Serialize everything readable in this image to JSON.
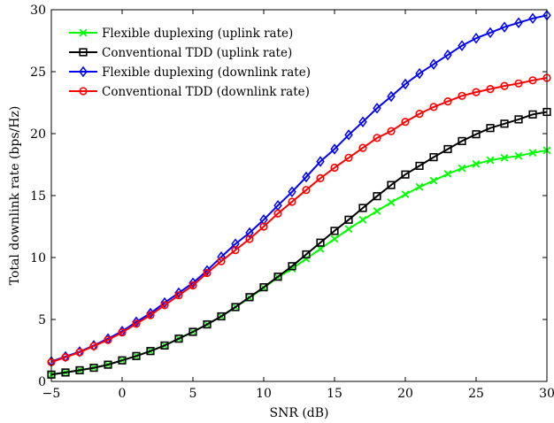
{
  "chart_data": {
    "type": "line",
    "title": "",
    "xlabel": "SNR (dB)",
    "ylabel": "Total downlink rate (bps/Hz)",
    "xlim": [
      -5,
      30
    ],
    "ylim": [
      0,
      30
    ],
    "xticks": [
      -5,
      0,
      5,
      10,
      15,
      20,
      25,
      30
    ],
    "yticks": [
      0,
      5,
      10,
      15,
      20,
      25,
      30
    ],
    "grid": false,
    "legend_position": "top-left",
    "x": [
      -5,
      -4,
      -3,
      -2,
      -1,
      0,
      1,
      2,
      3,
      4,
      5,
      6,
      7,
      8,
      9,
      10,
      11,
      12,
      13,
      14,
      15,
      16,
      17,
      18,
      19,
      20,
      21,
      22,
      23,
      24,
      25,
      26,
      27,
      28,
      29,
      30
    ],
    "series": [
      {
        "name": "Flexible duplexing (uplink rate)",
        "color": "#00ff00",
        "marker": "x",
        "values": [
          0.55,
          0.72,
          0.9,
          1.1,
          1.35,
          1.7,
          2.05,
          2.45,
          2.9,
          3.45,
          4.0,
          4.6,
          5.25,
          6.0,
          6.75,
          7.55,
          8.4,
          9.1,
          9.9,
          10.7,
          11.5,
          12.3,
          13.05,
          13.75,
          14.45,
          15.1,
          15.7,
          16.2,
          16.75,
          17.2,
          17.55,
          17.85,
          18.05,
          18.2,
          18.45,
          18.65
        ]
      },
      {
        "name": "Conventional TDD (uplink rate)",
        "color": "#000000",
        "marker": "square",
        "values": [
          0.55,
          0.72,
          0.9,
          1.1,
          1.35,
          1.7,
          2.05,
          2.45,
          2.9,
          3.45,
          4.0,
          4.6,
          5.25,
          6.0,
          6.8,
          7.6,
          8.45,
          9.3,
          10.25,
          11.2,
          12.15,
          13.05,
          14.0,
          14.95,
          15.85,
          16.7,
          17.4,
          18.1,
          18.75,
          19.4,
          19.95,
          20.45,
          20.8,
          21.15,
          21.55,
          21.75
        ]
      },
      {
        "name": "Flexible duplexing (downlink rate)",
        "color": "#0000ff",
        "marker": "diamond",
        "values": [
          1.6,
          2.0,
          2.4,
          2.9,
          3.45,
          4.05,
          4.8,
          5.5,
          6.35,
          7.15,
          7.95,
          8.95,
          10.05,
          11.1,
          12.0,
          13.05,
          14.2,
          15.3,
          16.5,
          17.75,
          18.75,
          19.9,
          20.95,
          22.05,
          23.0,
          24.0,
          24.85,
          25.6,
          26.35,
          27.1,
          27.7,
          28.15,
          28.6,
          28.95,
          29.3,
          29.55
        ]
      },
      {
        "name": "Conventional TDD (downlink rate)",
        "color": "#ff0000",
        "marker": "circle",
        "values": [
          1.55,
          1.95,
          2.35,
          2.85,
          3.35,
          3.95,
          4.65,
          5.35,
          6.15,
          6.95,
          7.75,
          8.75,
          9.7,
          10.6,
          11.5,
          12.5,
          13.55,
          14.5,
          15.45,
          16.4,
          17.25,
          18.05,
          18.85,
          19.65,
          20.2,
          20.95,
          21.6,
          22.15,
          22.6,
          23.05,
          23.35,
          23.6,
          23.85,
          24.05,
          24.3,
          24.5
        ]
      }
    ]
  }
}
